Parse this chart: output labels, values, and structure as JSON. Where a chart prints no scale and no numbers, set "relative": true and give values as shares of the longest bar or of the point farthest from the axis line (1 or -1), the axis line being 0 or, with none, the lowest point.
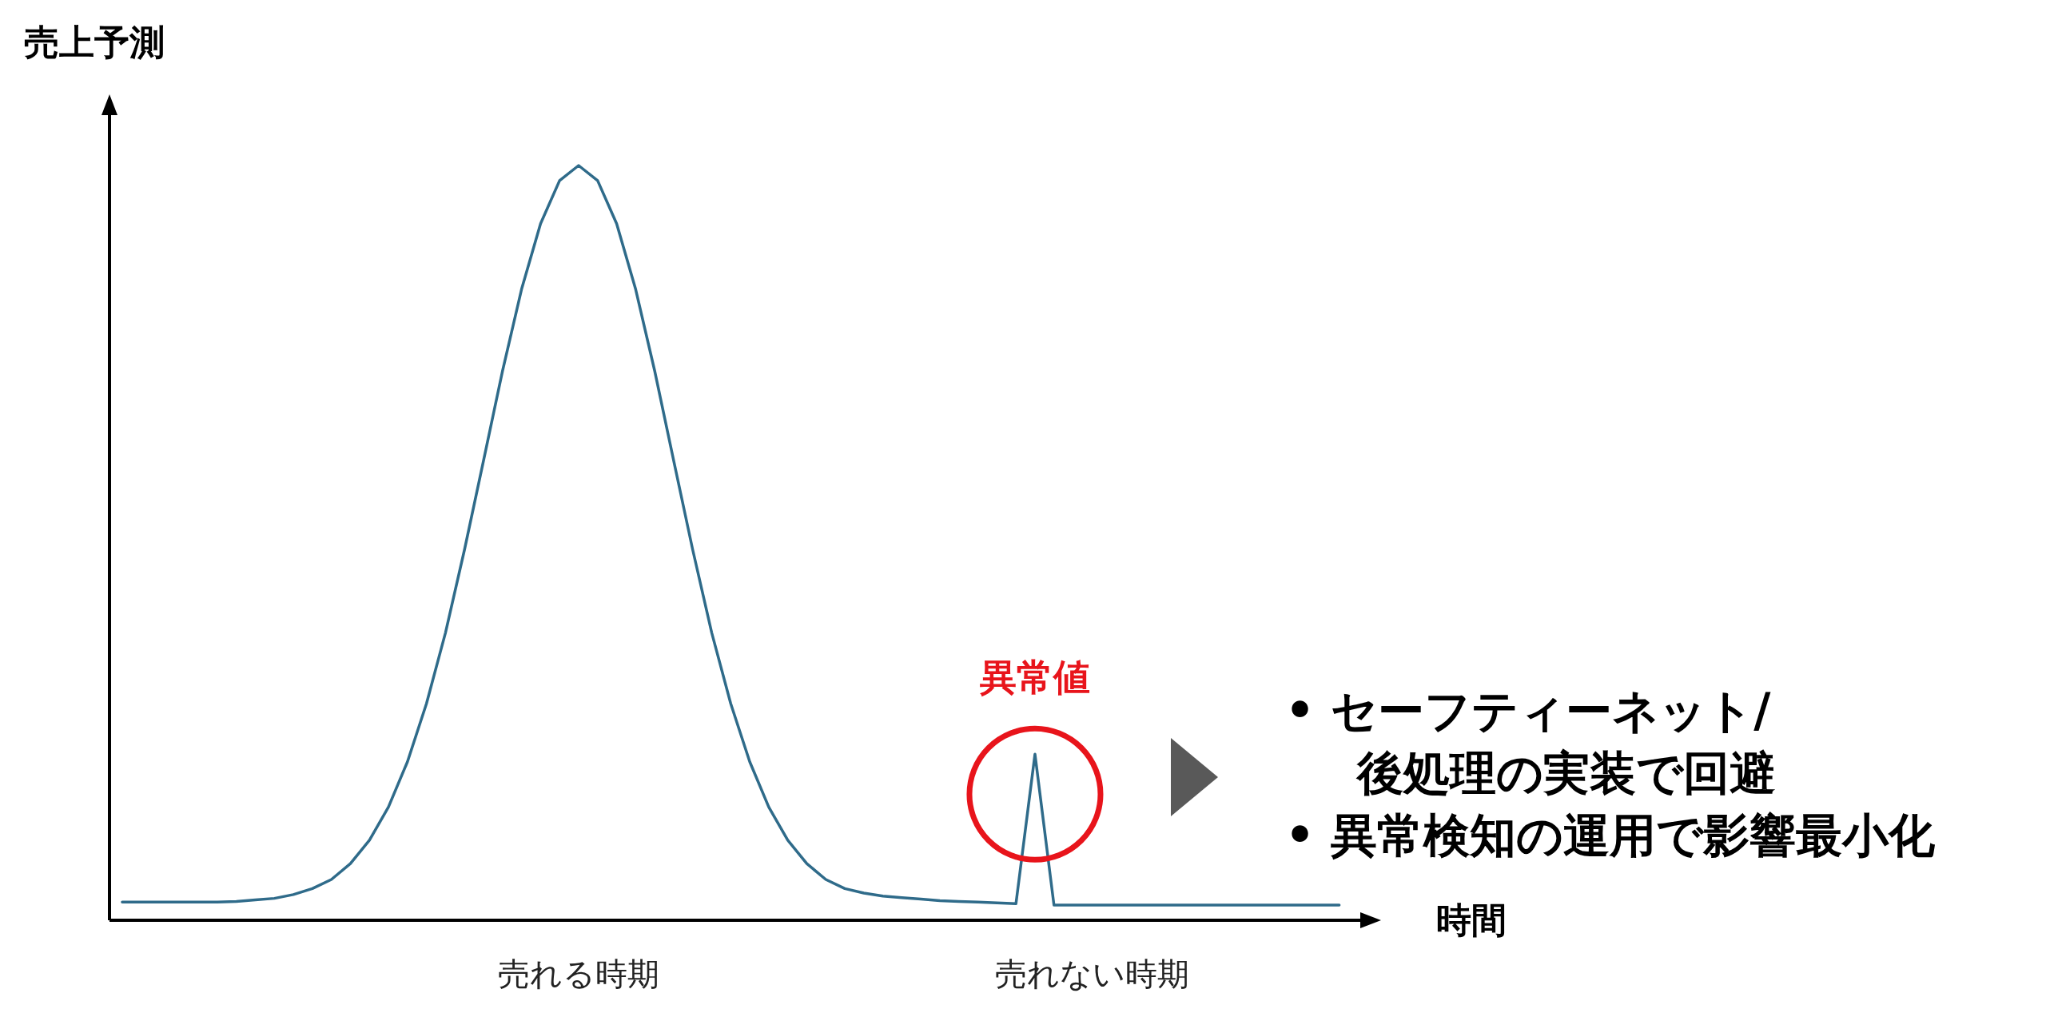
{
  "chart_data": {
    "type": "line",
    "relative": true,
    "ylabel": "売上予測",
    "xlabel": "時間",
    "categories": [
      null,
      null,
      null,
      null,
      null,
      null,
      null,
      null,
      null,
      null,
      null,
      null,
      null,
      null,
      null,
      null,
      null,
      null,
      null,
      null,
      null,
      null,
      null,
      null,
      "売れる時期",
      null,
      null,
      null,
      null,
      null,
      null,
      null,
      null,
      null,
      null,
      null,
      null,
      null,
      null,
      null,
      null,
      null,
      null,
      null,
      null,
      null,
      null,
      null,
      null,
      null,
      null,
      "売れない時期",
      null,
      null,
      null,
      null,
      null,
      null,
      null,
      null,
      null,
      null,
      null,
      null,
      null
    ],
    "series": [
      {
        "color": "#2f6b8a",
        "values": [
          0.024,
          0.024,
          0.024,
          0.024,
          0.024,
          0.024,
          0.025,
          0.027,
          0.029,
          0.034,
          0.042,
          0.054,
          0.075,
          0.106,
          0.15,
          0.21,
          0.287,
          0.381,
          0.491,
          0.609,
          0.728,
          0.836,
          0.923,
          0.98,
          1,
          0.98,
          0.923,
          0.836,
          0.728,
          0.609,
          0.491,
          0.381,
          0.287,
          0.21,
          0.15,
          0.106,
          0.075,
          0.054,
          0.042,
          0.036,
          0.032,
          0.03,
          0.028,
          0.026,
          0.025,
          0.024,
          0.023,
          0.022,
          0.22,
          0.02,
          0.02,
          0.02,
          0.02,
          0.02,
          0.02,
          0.02,
          0.02,
          0.02,
          0.02,
          0.02,
          0.02,
          0.02,
          0.02,
          0.02,
          0.02
        ]
      }
    ],
    "annotations": [
      {
        "text": "異常値",
        "y": 0.22
      },
      "• セーフティーネット/\n後処理の実装で回避",
      "• 異常検知の運用で影響最小化"
    ]
  }
}
